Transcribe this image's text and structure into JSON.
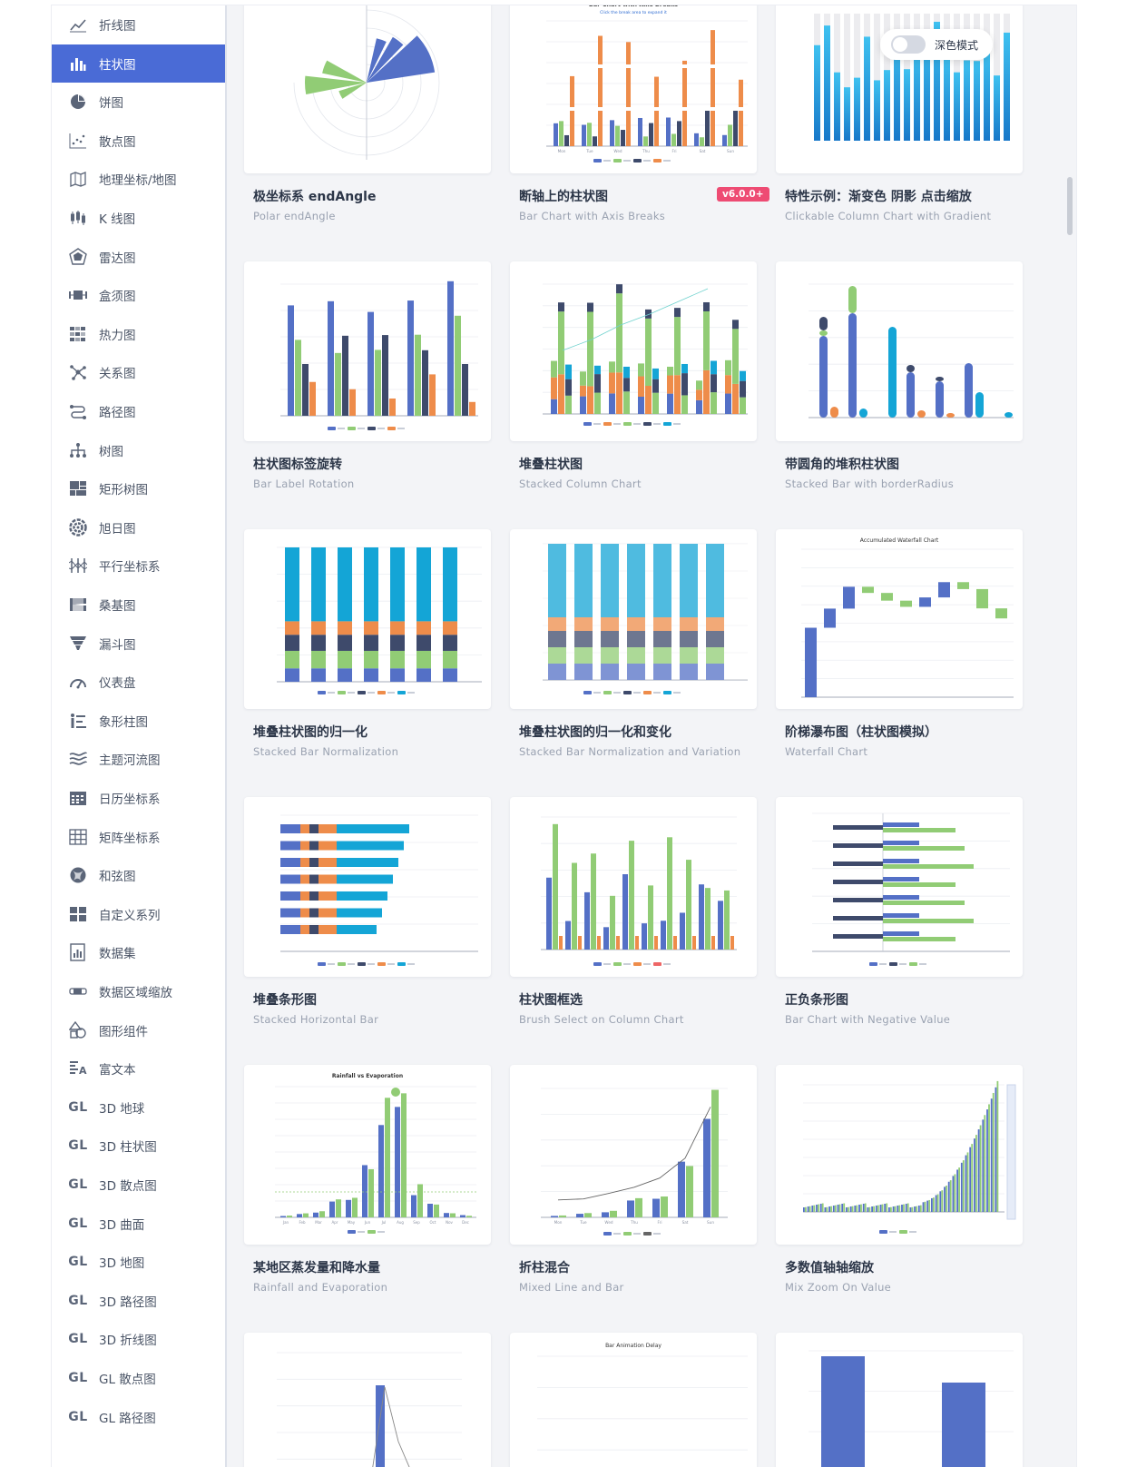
{
  "sidebar": {
    "items": [
      {
        "label": "折线图",
        "icon": "line-chart-icon"
      },
      {
        "label": "柱状图",
        "icon": "bar-chart-icon",
        "active": true
      },
      {
        "label": "饼图",
        "icon": "pie-chart-icon"
      },
      {
        "label": "散点图",
        "icon": "scatter-icon"
      },
      {
        "label": "地理坐标/地图",
        "icon": "map-icon"
      },
      {
        "label": "K 线图",
        "icon": "candlestick-icon"
      },
      {
        "label": "雷达图",
        "icon": "radar-icon"
      },
      {
        "label": "盒须图",
        "icon": "boxplot-icon"
      },
      {
        "label": "热力图",
        "icon": "heatmap-icon"
      },
      {
        "label": "关系图",
        "icon": "graph-icon"
      },
      {
        "label": "路径图",
        "icon": "lines-icon"
      },
      {
        "label": "树图",
        "icon": "tree-icon"
      },
      {
        "label": "矩形树图",
        "icon": "treemap-icon"
      },
      {
        "label": "旭日图",
        "icon": "sunburst-icon"
      },
      {
        "label": "平行坐标系",
        "icon": "parallel-icon"
      },
      {
        "label": "桑基图",
        "icon": "sankey-icon"
      },
      {
        "label": "漏斗图",
        "icon": "funnel-icon"
      },
      {
        "label": "仪表盘",
        "icon": "gauge-icon"
      },
      {
        "label": "象形柱图",
        "icon": "pictorial-bar-icon"
      },
      {
        "label": "主题河流图",
        "icon": "theme-river-icon"
      },
      {
        "label": "日历坐标系",
        "icon": "calendar-icon"
      },
      {
        "label": "矩阵坐标系",
        "icon": "matrix-icon"
      },
      {
        "label": "和弦图",
        "icon": "chord-icon"
      },
      {
        "label": "自定义系列",
        "icon": "custom-icon"
      },
      {
        "label": "数据集",
        "icon": "dataset-icon"
      },
      {
        "label": "数据区域缩放",
        "icon": "datazoom-icon"
      },
      {
        "label": "图形组件",
        "icon": "graphic-icon"
      },
      {
        "label": "富文本",
        "icon": "rich-text-icon"
      },
      {
        "label": "3D 地球",
        "icon": "gl-icon",
        "gl": "GL"
      },
      {
        "label": "3D 柱状图",
        "icon": "gl-icon",
        "gl": "GL"
      },
      {
        "label": "3D 散点图",
        "icon": "gl-icon",
        "gl": "GL"
      },
      {
        "label": "3D 曲面",
        "icon": "gl-icon",
        "gl": "GL"
      },
      {
        "label": "3D 地图",
        "icon": "gl-icon",
        "gl": "GL"
      },
      {
        "label": "3D 路径图",
        "icon": "gl-icon",
        "gl": "GL"
      },
      {
        "label": "3D 折线图",
        "icon": "gl-icon",
        "gl": "GL"
      },
      {
        "label": "GL 散点图",
        "icon": "gl-icon",
        "gl": "GL"
      },
      {
        "label": "GL 路径图",
        "icon": "gl-icon",
        "gl": "GL"
      }
    ]
  },
  "toggle": {
    "label": "深色模式",
    "on": false
  },
  "cards": [
    {
      "title": "极坐标系 endAngle",
      "subtitle": "Polar endAngle"
    },
    {
      "title": "断轴上的柱状图",
      "subtitle": "Bar Chart with Axis Breaks",
      "badge": "v6.0.0+"
    },
    {
      "title": "特性示例：渐变色 阴影 点击缩放",
      "subtitle": "Clickable Column Chart with Gradient"
    },
    {
      "title": "柱状图标签旋转",
      "subtitle": "Bar Label Rotation"
    },
    {
      "title": "堆叠柱状图",
      "subtitle": "Stacked Column Chart"
    },
    {
      "title": "带圆角的堆积柱状图",
      "subtitle": "Stacked Bar with borderRadius"
    },
    {
      "title": "堆叠柱状图的归一化",
      "subtitle": "Stacked Bar Normalization"
    },
    {
      "title": "堆叠柱状图的归一化和变化",
      "subtitle": "Stacked Bar Normalization and Variation"
    },
    {
      "title": "阶梯瀑布图（柱状图模拟）",
      "subtitle": "Waterfall Chart"
    },
    {
      "title": "堆叠条形图",
      "subtitle": "Stacked Horizontal Bar"
    },
    {
      "title": "柱状图框选",
      "subtitle": "Brush Select on Column Chart"
    },
    {
      "title": "正负条形图",
      "subtitle": "Bar Chart with Negative Value"
    },
    {
      "title": "某地区蒸发量和降水量",
      "subtitle": "Rainfall and Evaporation"
    },
    {
      "title": "折柱混合",
      "subtitle": "Mixed Line and Bar"
    },
    {
      "title": "多数值轴轴缩放",
      "subtitle": "Mix Zoom On Value"
    },
    {
      "title": "",
      "subtitle": ""
    },
    {
      "title": "",
      "subtitle": ""
    },
    {
      "title": "",
      "subtitle": ""
    }
  ],
  "thumb_text": {
    "axis_breaks_title": "Bar Chart with Axis Breaks",
    "axis_breaks_hint": "Click the break area to expand it",
    "waterfall_title": "Accumulated Waterfall Chart",
    "rainfall_title": "Rainfall vs Evaporation",
    "animation_title": "Bar Animation Delay",
    "weekdays": [
      "Mon",
      "Tue",
      "Wed",
      "Thu",
      "Fri",
      "Sat",
      "Sun"
    ],
    "months": [
      "Jan",
      "Feb",
      "Mar",
      "Apr",
      "May",
      "Jun",
      "Jul",
      "Aug",
      "Sep",
      "Oct",
      "Nov",
      "Dec"
    ]
  },
  "colors": {
    "blue": "#5470c6",
    "green": "#91cc75",
    "navy": "#3e4a6b",
    "orange": "#ee8c4a",
    "cyan": "#14a5d6",
    "yellow": "#fac858",
    "red": "#ee6666",
    "active_nav": "#4a6bd6",
    "badge": "#ee4b73"
  }
}
